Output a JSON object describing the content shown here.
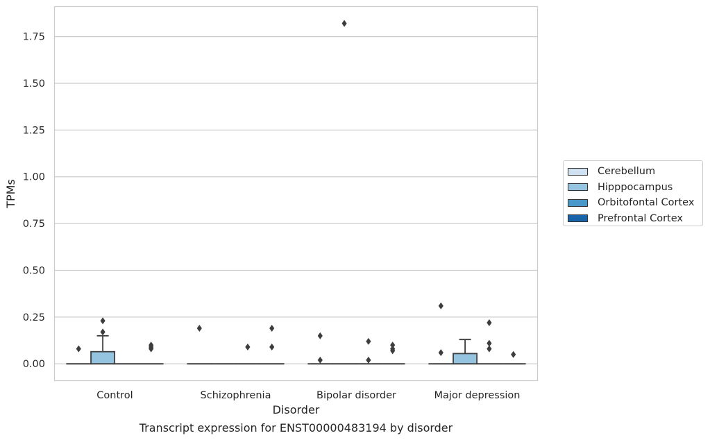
{
  "chart_data": {
    "type": "box",
    "caption": "Transcript expression for ENST00000483194 by disorder",
    "xlabel": "Disorder",
    "ylabel": "TPMs",
    "ylim": [
      -0.09,
      1.91
    ],
    "yticks": [
      "0.00",
      "0.25",
      "0.50",
      "0.75",
      "1.00",
      "1.25",
      "1.50",
      "1.75"
    ],
    "grid": true,
    "legend_placement": "right",
    "categories": [
      "Control",
      "Schizophrenia",
      "Bipolar disorder",
      "Major depression"
    ],
    "series": [
      {
        "name": "Cerebellum",
        "color": "#d0e1f2"
      },
      {
        "name": "Hipppocampus",
        "color": "#94c4df"
      },
      {
        "name": "Orbitofontal Cortex",
        "color": "#4a98c9"
      },
      {
        "name": "Prefrontal Cortex",
        "color": "#1764ab"
      }
    ],
    "boxes": [
      {
        "category": "Control",
        "series": "Cerebellum",
        "q1": 0,
        "median": 0,
        "q3": 0,
        "whisker_low": 0,
        "whisker_high": 0,
        "outliers": [
          0.08
        ]
      },
      {
        "category": "Control",
        "series": "Hipppocampus",
        "q1": 0,
        "median": 0,
        "q3": 0.065,
        "whisker_low": 0,
        "whisker_high": 0.15,
        "outliers": [
          0.17,
          0.23
        ]
      },
      {
        "category": "Control",
        "series": "Orbitofontal Cortex",
        "q1": 0,
        "median": 0,
        "q3": 0,
        "whisker_low": 0,
        "whisker_high": 0,
        "outliers": []
      },
      {
        "category": "Control",
        "series": "Prefrontal Cortex",
        "q1": 0,
        "median": 0,
        "q3": 0,
        "whisker_low": 0,
        "whisker_high": 0,
        "outliers": [
          0.08,
          0.09,
          0.1
        ]
      },
      {
        "category": "Schizophrenia",
        "series": "Cerebellum",
        "q1": 0,
        "median": 0,
        "q3": 0,
        "whisker_low": 0,
        "whisker_high": 0,
        "outliers": [
          0.19
        ]
      },
      {
        "category": "Schizophrenia",
        "series": "Hipppocampus",
        "q1": 0,
        "median": 0,
        "q3": 0,
        "whisker_low": 0,
        "whisker_high": 0,
        "outliers": []
      },
      {
        "category": "Schizophrenia",
        "series": "Orbitofontal Cortex",
        "q1": 0,
        "median": 0,
        "q3": 0,
        "whisker_low": 0,
        "whisker_high": 0,
        "outliers": [
          0.09
        ]
      },
      {
        "category": "Schizophrenia",
        "series": "Prefrontal Cortex",
        "q1": 0,
        "median": 0,
        "q3": 0,
        "whisker_low": 0,
        "whisker_high": 0,
        "outliers": [
          0.09,
          0.19
        ]
      },
      {
        "category": "Bipolar disorder",
        "series": "Cerebellum",
        "q1": 0,
        "median": 0,
        "q3": 0,
        "whisker_low": 0,
        "whisker_high": 0,
        "outliers": [
          0.02,
          0.15
        ]
      },
      {
        "category": "Bipolar disorder",
        "series": "Hipppocampus",
        "q1": 0,
        "median": 0,
        "q3": 0,
        "whisker_low": 0,
        "whisker_high": 0,
        "outliers": [
          1.82
        ]
      },
      {
        "category": "Bipolar disorder",
        "series": "Orbitofontal Cortex",
        "q1": 0,
        "median": 0,
        "q3": 0,
        "whisker_low": 0,
        "whisker_high": 0,
        "outliers": [
          0.02,
          0.12
        ]
      },
      {
        "category": "Bipolar disorder",
        "series": "Prefrontal Cortex",
        "q1": 0,
        "median": 0,
        "q3": 0,
        "whisker_low": 0,
        "whisker_high": 0,
        "outliers": [
          0.07,
          0.08,
          0.1
        ]
      },
      {
        "category": "Major depression",
        "series": "Cerebellum",
        "q1": 0,
        "median": 0,
        "q3": 0,
        "whisker_low": 0,
        "whisker_high": 0,
        "outliers": [
          0.06,
          0.31
        ]
      },
      {
        "category": "Major depression",
        "series": "Hipppocampus",
        "q1": 0,
        "median": 0,
        "q3": 0.055,
        "whisker_low": 0,
        "whisker_high": 0.13,
        "outliers": []
      },
      {
        "category": "Major depression",
        "series": "Orbitofontal Cortex",
        "q1": 0,
        "median": 0,
        "q3": 0,
        "whisker_low": 0,
        "whisker_high": 0,
        "outliers": [
          0.22,
          0.08,
          0.11
        ]
      },
      {
        "category": "Major depression",
        "series": "Prefrontal Cortex",
        "q1": 0,
        "median": 0,
        "q3": 0,
        "whisker_low": 0,
        "whisker_high": 0,
        "outliers": [
          0.05
        ]
      }
    ]
  }
}
